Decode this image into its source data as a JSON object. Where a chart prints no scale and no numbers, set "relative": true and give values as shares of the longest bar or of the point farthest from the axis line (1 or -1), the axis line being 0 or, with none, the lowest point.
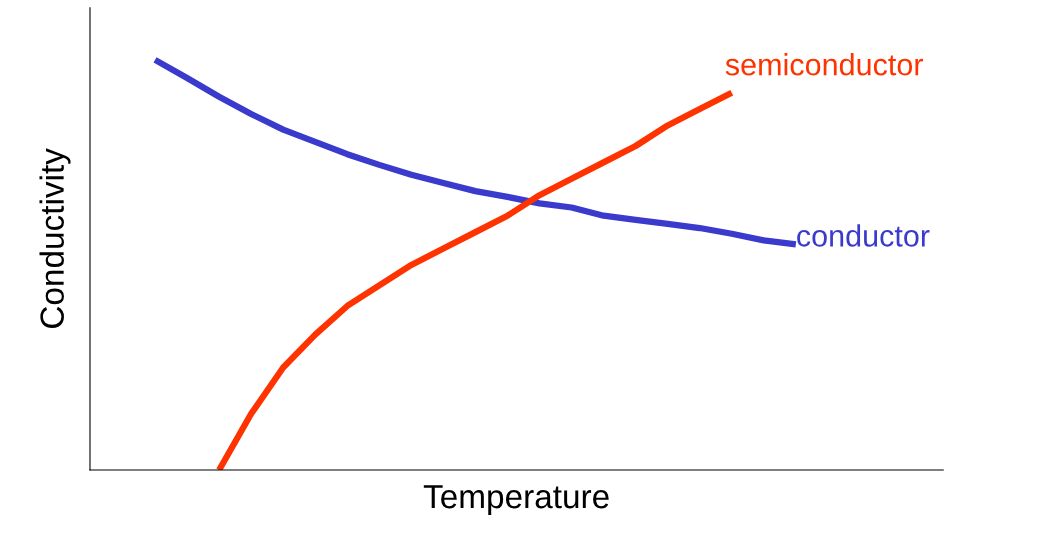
{
  "chart_data": {
    "type": "line",
    "relative": true,
    "xlabel": "Temperature",
    "ylabel": "Conductivity",
    "marker": "none",
    "line_style": "solid",
    "categories": [
      null,
      null,
      null,
      null,
      null,
      null,
      null,
      null,
      null,
      null,
      null,
      null,
      null,
      null,
      null,
      null,
      null,
      null,
      null,
      null,
      null
    ],
    "series": [
      {
        "name": "conductor",
        "color": "#3a3acc",
        "values": [
          1.0,
          0.956,
          0.91,
          0.868,
          0.83,
          0.8,
          0.77,
          0.744,
          0.72,
          0.7,
          0.68,
          0.666,
          0.65,
          0.64,
          0.62,
          0.61,
          0.6,
          0.59,
          0.576,
          0.56,
          0.55
        ]
      },
      {
        "name": "semiconductor",
        "color": "#ff3300",
        "values": [
          null,
          null,
          0.0,
          0.137,
          0.25,
          0.33,
          0.4,
          0.45,
          0.5,
          0.54,
          0.58,
          0.62,
          0.67,
          0.71,
          0.75,
          0.79,
          0.84,
          0.88,
          0.92,
          null,
          null
        ]
      }
    ]
  }
}
